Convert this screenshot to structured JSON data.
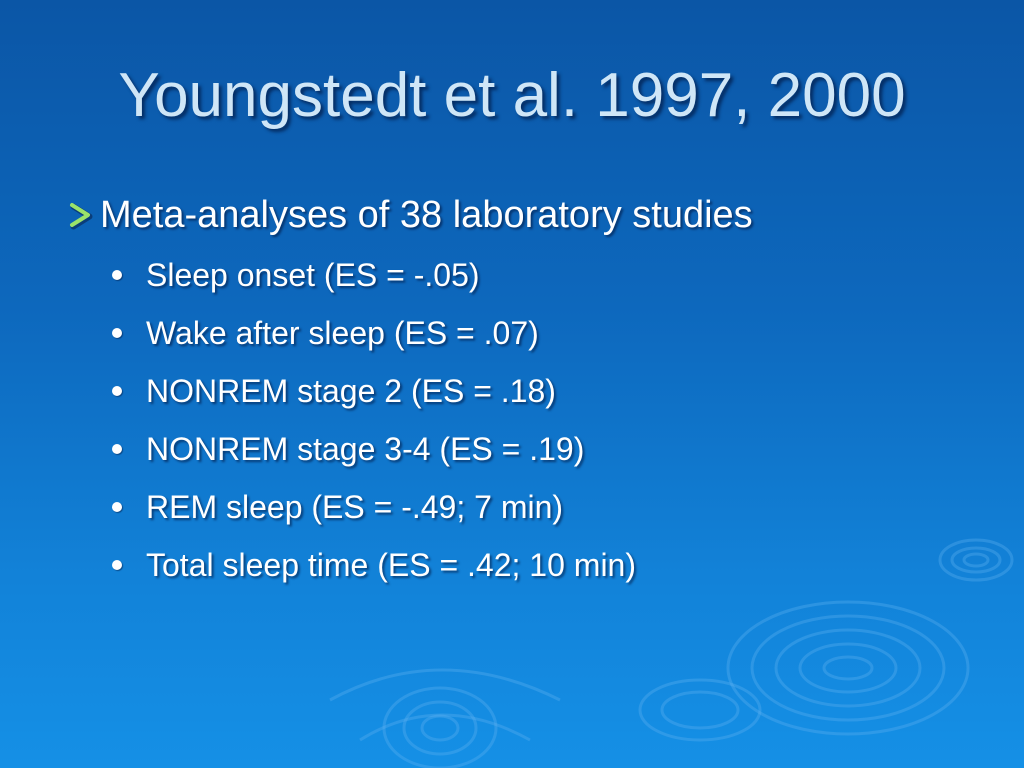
{
  "slide": {
    "title": "Youngstedt et al. 1997, 2000",
    "main_bullet": {
      "icon": "arrow-bullet-icon",
      "text": "Meta-analyses of 38 laboratory studies"
    },
    "sub_bullets": [
      "Sleep onset (ES = -.05)",
      "Wake after sleep (ES = .07)",
      "NONREM stage 2 (ES = .18)",
      "NONREM stage 3-4 (ES = .19)",
      "REM sleep (ES = -.49; 7 min)",
      "Total sleep time (ES = .42; 10 min)"
    ]
  },
  "colors": {
    "background_top": "#0b56a6",
    "background_bottom": "#1590e6",
    "title": "#cfe6f7",
    "body_text": "#ffffff",
    "arrow_bullet": "#9be36a"
  }
}
